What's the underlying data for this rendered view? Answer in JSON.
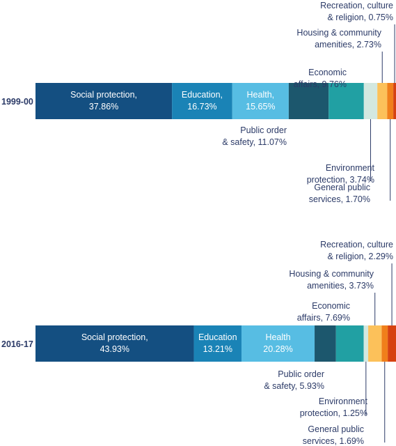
{
  "chart_data": {
    "type": "bar",
    "orientation": "horizontal",
    "stacked": true,
    "percent": true,
    "categories": [
      "1999-00",
      "2016-17"
    ],
    "series": [
      {
        "name": "Social protection",
        "color": "#144f81",
        "values": [
          37.86,
          43.93
        ],
        "labels": [
          [
            "Social protection,",
            "37.86%"
          ],
          [
            "Social protection,",
            "43.93%"
          ]
        ]
      },
      {
        "name": "Education",
        "color": "#1a83b6",
        "values": [
          16.73,
          13.21
        ],
        "labels": [
          [
            "Education,",
            "16.73%"
          ],
          [
            "Education",
            "13.21%"
          ]
        ]
      },
      {
        "name": "Health",
        "color": "#57bde3",
        "values": [
          15.65,
          20.28
        ],
        "labels": [
          [
            "Health,",
            "15.65%"
          ],
          [
            "Health",
            "20.28%"
          ]
        ]
      },
      {
        "name": "Public order & safety",
        "color": "#1c576d",
        "values": [
          11.07,
          5.93
        ],
        "labels": [
          [
            "Public order",
            "& safety, 11.07%"
          ],
          [
            "Public order",
            "& safety, 5.93%"
          ]
        ]
      },
      {
        "name": "Economic affairs",
        "color": "#21a0a3",
        "values": [
          9.76,
          7.69
        ],
        "labels": [
          [
            "Economic",
            "affairs, 9.76%"
          ],
          [
            "Economic",
            "affairs, 7.69%"
          ]
        ]
      },
      {
        "name": "Environment protection",
        "color": "#d3e8e0",
        "values": [
          3.74,
          1.25
        ],
        "labels": [
          [
            "Environment",
            "protection, 3.74%"
          ],
          [
            "Environment",
            "protection, 1.25%"
          ]
        ]
      },
      {
        "name": "Housing & community amenities",
        "color": "#fcc15a",
        "values": [
          2.73,
          3.73
        ],
        "labels": [
          [
            "Housing & community",
            "amenities, 2.73%"
          ],
          [
            "Housing & community",
            "amenities, 3.73%"
          ]
        ]
      },
      {
        "name": "General public services",
        "color": "#f07f1b",
        "values": [
          1.7,
          1.69
        ],
        "labels": [
          [
            "General public",
            "services, 1.70%"
          ],
          [
            "General public",
            "services, 1.69%"
          ]
        ]
      },
      {
        "name": "Recreation, culture & religion",
        "color": "#d64211",
        "values": [
          0.75,
          2.29
        ],
        "labels": [
          [
            "Recreation, culture",
            "& religion, 0.75%"
          ],
          [
            "Recreation, culture",
            "& religion, 2.29%"
          ]
        ]
      }
    ]
  }
}
